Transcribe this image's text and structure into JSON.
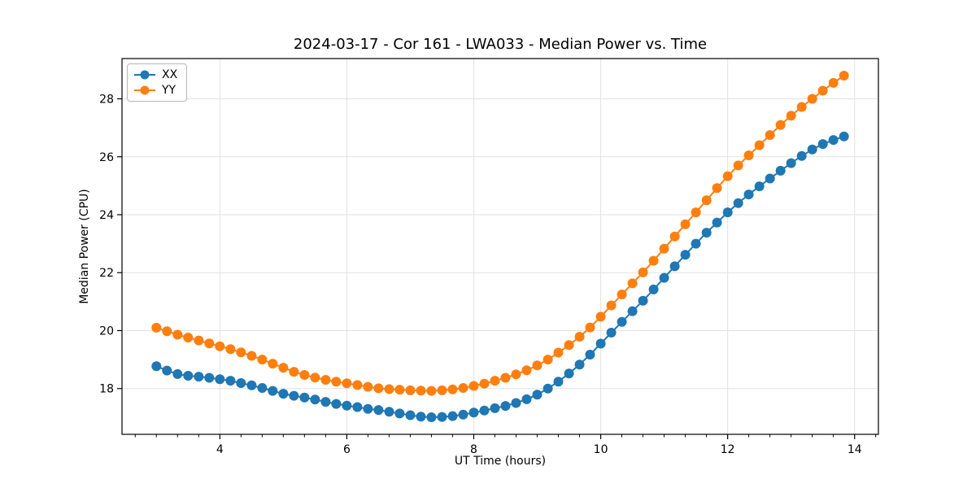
{
  "chart_data": {
    "type": "line",
    "title": "2024-03-17 - Cor 161 - LWA033 - Median Power vs. Time",
    "xlabel": "UT Time (hours)",
    "ylabel": "Median Power (CPU)",
    "grid": true,
    "legend_position": "upper left",
    "xlim": [
      2.458,
      14.375
    ],
    "ylim": [
      16.42,
      29.39
    ],
    "xticks": [
      4,
      6,
      8,
      10,
      12,
      14
    ],
    "yticks": [
      18,
      20,
      22,
      24,
      26,
      28
    ],
    "x_minor_step": 0.3333,
    "grid_color": "#e2e2e2",
    "spine_color": "#000000",
    "x": [
      3.0,
      3.167,
      3.333,
      3.5,
      3.667,
      3.833,
      4.0,
      4.167,
      4.333,
      4.5,
      4.667,
      4.833,
      5.0,
      5.167,
      5.333,
      5.5,
      5.667,
      5.833,
      6.0,
      6.167,
      6.333,
      6.5,
      6.667,
      6.833,
      7.0,
      7.167,
      7.333,
      7.5,
      7.667,
      7.833,
      8.0,
      8.167,
      8.333,
      8.5,
      8.667,
      8.833,
      9.0,
      9.167,
      9.333,
      9.5,
      9.667,
      9.833,
      10.0,
      10.167,
      10.333,
      10.5,
      10.667,
      10.833,
      11.0,
      11.167,
      11.333,
      11.5,
      11.667,
      11.833,
      12.0,
      12.167,
      12.333,
      12.5,
      12.667,
      12.833,
      13.0,
      13.167,
      13.333,
      13.5,
      13.667,
      13.833
    ],
    "series": [
      {
        "name": "XX",
        "color": "#1f77b4",
        "marker": "circle",
        "values": [
          18.77,
          18.62,
          18.5,
          18.44,
          18.41,
          18.37,
          18.32,
          18.27,
          18.19,
          18.11,
          18.02,
          17.92,
          17.82,
          17.75,
          17.69,
          17.62,
          17.54,
          17.47,
          17.41,
          17.36,
          17.3,
          17.26,
          17.2,
          17.14,
          17.08,
          17.03,
          17.01,
          17.02,
          17.05,
          17.1,
          17.17,
          17.24,
          17.32,
          17.4,
          17.5,
          17.63,
          17.79,
          18.0,
          18.24,
          18.52,
          18.83,
          19.17,
          19.55,
          19.93,
          20.3,
          20.67,
          21.03,
          21.42,
          21.82,
          22.22,
          22.62,
          23.0,
          23.38,
          23.73,
          24.08,
          24.4,
          24.7,
          24.98,
          25.25,
          25.52,
          25.78,
          26.03,
          26.25,
          26.44,
          26.58,
          26.7
        ]
      },
      {
        "name": "YY",
        "color": "#ff7f0e",
        "marker": "circle",
        "values": [
          20.1,
          19.98,
          19.86,
          19.76,
          19.66,
          19.56,
          19.46,
          19.36,
          19.25,
          19.13,
          19.0,
          18.86,
          18.72,
          18.58,
          18.47,
          18.38,
          18.3,
          18.24,
          18.18,
          18.12,
          18.06,
          18.01,
          17.98,
          17.96,
          17.94,
          17.93,
          17.92,
          17.94,
          17.97,
          18.02,
          18.09,
          18.17,
          18.27,
          18.37,
          18.49,
          18.63,
          18.8,
          19.0,
          19.24,
          19.5,
          19.79,
          20.11,
          20.48,
          20.87,
          21.25,
          21.63,
          22.01,
          22.41,
          22.83,
          23.25,
          23.67,
          24.08,
          24.5,
          24.92,
          25.33,
          25.7,
          26.05,
          26.4,
          26.75,
          27.1,
          27.42,
          27.72,
          28.0,
          28.28,
          28.55,
          28.8
        ]
      }
    ]
  }
}
